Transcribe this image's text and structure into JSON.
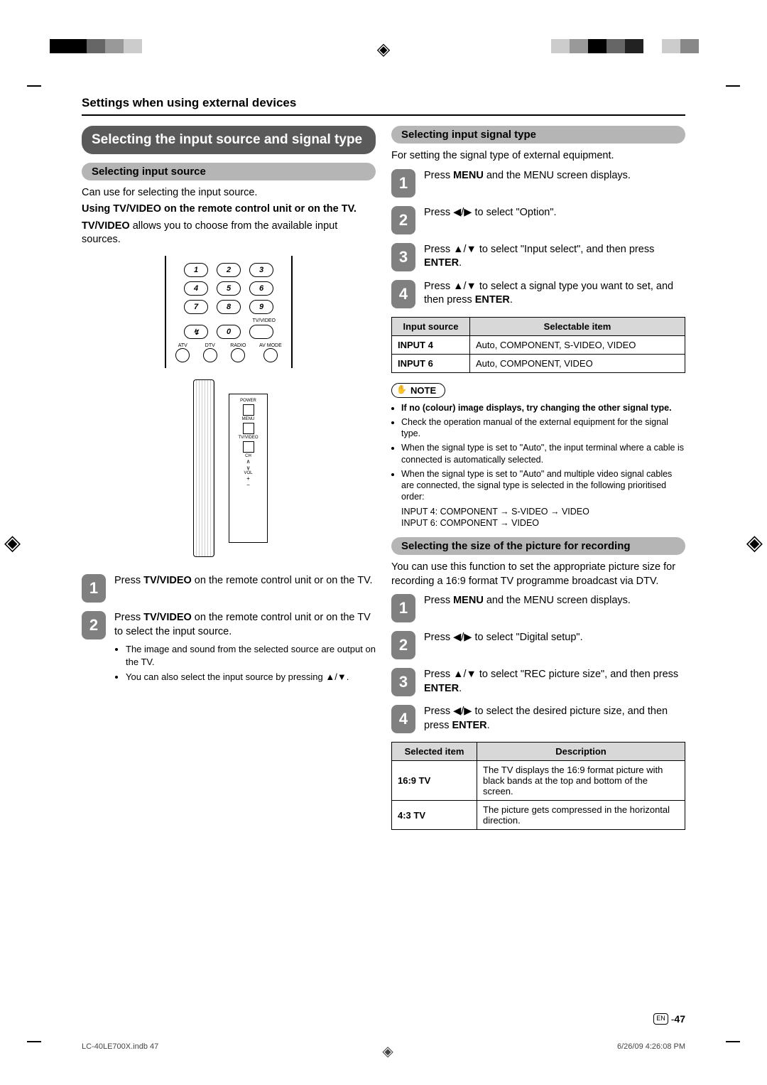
{
  "registration": {
    "colors_left": [
      "#000000",
      "#000000",
      "#666666",
      "#999999",
      "#cccccc",
      "#ffffff",
      "#ffffff",
      "#ffffff",
      "#ffffff"
    ],
    "colors_right": [
      "#ffffff",
      "#cccccc",
      "#999999",
      "#000000",
      "#666666",
      "#222222",
      "#ffffff",
      "#cccccc",
      "#888888",
      "#ffffff"
    ]
  },
  "header": "Settings when using external devices",
  "left": {
    "title": "Selecting the input source and signal type",
    "sub1": "Selecting input source",
    "intro1": "Can use for selecting the input source.",
    "intro2": "Using TV/VIDEO on the remote control unit or on the TV.",
    "intro3_pre": "TV/VIDEO",
    "intro3_post": " allows you to choose from the available input sources.",
    "remote_keys": [
      [
        "1",
        "2",
        "3"
      ],
      [
        "4",
        "5",
        "6"
      ],
      [
        "7",
        "8",
        "9"
      ]
    ],
    "remote_bottom_label": "TV/VIDEO",
    "remote_bottom_row": [
      "ATV",
      "DTV",
      "RADIO",
      "AV MODE"
    ],
    "tv_labels": [
      "POWER",
      "MENU",
      "TV/VIDEO",
      "CH",
      "VOL"
    ],
    "steps": [
      {
        "n": "1",
        "text_pre": "Press ",
        "text_bold": "TV/VIDEO",
        "text_post": " on the remote control unit or on the TV."
      },
      {
        "n": "2",
        "text_pre": "Press ",
        "text_bold": "TV/VIDEO",
        "text_post": " on the remote control unit or on the TV to select the input source.",
        "bullets": [
          "The image and sound from the selected source are output on the TV.",
          "You can also select the input source by pressing ▲/▼."
        ]
      }
    ]
  },
  "right": {
    "sub1": "Selecting input signal type",
    "intro": "For setting the signal type of external equipment.",
    "steps1": [
      {
        "n": "1",
        "html": "Press <b>MENU</b> and the MENU screen displays."
      },
      {
        "n": "2",
        "html": "Press ◀/▶ to select \"Option\"."
      },
      {
        "n": "3",
        "html": "Press ▲/▼ to select \"Input select\", and then press <b>ENTER</b>."
      },
      {
        "n": "4",
        "html": "Press ▲/▼ to select a signal type you want to set, and then press <b>ENTER</b>."
      }
    ],
    "table1": {
      "headers": [
        "Input source",
        "Selectable item"
      ],
      "rows": [
        [
          "INPUT 4",
          "Auto, COMPONENT, S-VIDEO, VIDEO"
        ],
        [
          "INPUT 6",
          "Auto, COMPONENT, VIDEO"
        ]
      ]
    },
    "note_label": "NOTE",
    "notes": [
      {
        "bold": true,
        "text": "If no (colour) image displays, try changing the other signal type."
      },
      {
        "bold": false,
        "text": "Check the operation manual of the external equipment for the signal type."
      },
      {
        "bold": false,
        "text": "When the signal type is set to \"Auto\", the input terminal where a cable is connected is automatically selected."
      },
      {
        "bold": false,
        "text": "When the signal type is set to \"Auto\" and multiple video signal cables are connected, the signal type is selected in the following prioritised order:"
      }
    ],
    "note_lines": [
      "INPUT 4: COMPONENT → S-VIDEO → VIDEO",
      "INPUT 6: COMPONENT → VIDEO"
    ],
    "sub2": "Selecting the size of the picture for recording",
    "intro2": "You can use this function to set the appropriate picture size for recording a 16:9 format TV programme broadcast via DTV.",
    "steps2": [
      {
        "n": "1",
        "html": "Press <b>MENU</b> and the MENU screen displays."
      },
      {
        "n": "2",
        "html": "Press ◀/▶ to select \"Digital setup\"."
      },
      {
        "n": "3",
        "html": "Press ▲/▼ to select \"REC picture size\", and then press <b>ENTER</b>."
      },
      {
        "n": "4",
        "html": "Press ◀/▶ to select the desired picture size, and then press <b>ENTER</b>."
      }
    ],
    "table2": {
      "headers": [
        "Selected item",
        "Description"
      ],
      "rows": [
        [
          "16:9 TV",
          "The TV displays the 16:9 format picture with black bands at the top and bottom of the screen."
        ],
        [
          "4:3 TV",
          "The picture gets compressed in the horizontal direction."
        ]
      ]
    }
  },
  "footer": {
    "lang": "EN",
    "sep": " - ",
    "page": "47"
  },
  "print_footer": {
    "file": "LC-40LE700X.indb   47",
    "stamp": "6/26/09   4:26:08 PM"
  }
}
